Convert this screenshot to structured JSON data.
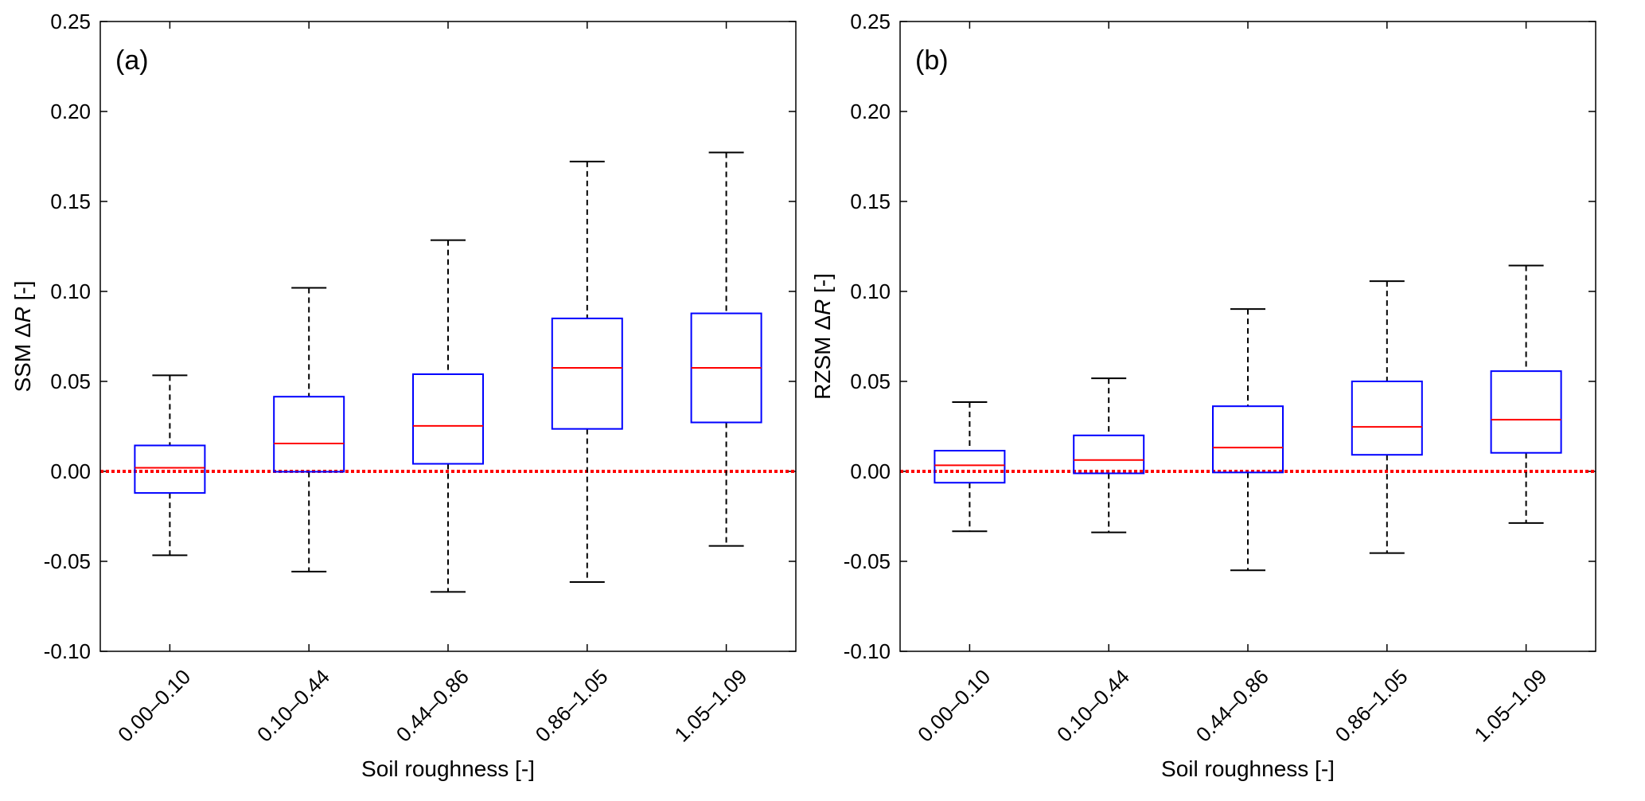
{
  "chart_data": [
    {
      "type": "box",
      "panel_label": "(a)",
      "title": "",
      "xlabel": "Soil roughness [-]",
      "ylabel_prefix": "SSM ",
      "ylabel_delta": "Δ",
      "ylabel_var": "R",
      "ylabel_suffix": " [-]",
      "ylim": [
        -0.1,
        0.25
      ],
      "yticks": [
        "-0.10",
        "-0.05",
        "0.00",
        "0.05",
        "0.10",
        "0.15",
        "0.20",
        "0.25"
      ],
      "categories": [
        "0.00–0.10",
        "0.10–0.44",
        "0.44–0.86",
        "0.86–1.05",
        "1.05–1.09"
      ],
      "boxes": [
        {
          "whisker_low": -0.0466,
          "q1": -0.012,
          "median": 0.002,
          "q3": 0.0144,
          "whisker_high": 0.0534
        },
        {
          "whisker_low": -0.0557,
          "q1": -0.0002,
          "median": 0.0155,
          "q3": 0.0415,
          "whisker_high": 0.102
        },
        {
          "whisker_low": -0.067,
          "q1": 0.0042,
          "median": 0.0253,
          "q3": 0.054,
          "whisker_high": 0.1285
        },
        {
          "whisker_low": -0.0615,
          "q1": 0.0236,
          "median": 0.0575,
          "q3": 0.085,
          "whisker_high": 0.1722
        },
        {
          "whisker_low": -0.0414,
          "q1": 0.0272,
          "median": 0.0575,
          "q3": 0.0878,
          "whisker_high": 0.1772
        }
      ],
      "reference_line": 0.0
    },
    {
      "type": "box",
      "panel_label": "(b)",
      "title": "",
      "xlabel": "Soil roughness [-]",
      "ylabel_prefix": "RZSM ",
      "ylabel_delta": "Δ",
      "ylabel_var": "R",
      "ylabel_suffix": " [-]",
      "ylim": [
        -0.1,
        0.25
      ],
      "yticks": [
        "-0.10",
        "-0.05",
        "0.00",
        "0.05",
        "0.10",
        "0.15",
        "0.20",
        "0.25"
      ],
      "categories": [
        "0.00–0.10",
        "0.10–0.44",
        "0.44–0.86",
        "0.86–1.05",
        "1.05–1.09"
      ],
      "boxes": [
        {
          "whisker_low": -0.0333,
          "q1": -0.0063,
          "median": 0.0034,
          "q3": 0.0115,
          "whisker_high": 0.0385
        },
        {
          "whisker_low": -0.0339,
          "q1": -0.0011,
          "median": 0.0063,
          "q3": 0.02,
          "whisker_high": 0.0517
        },
        {
          "whisker_low": -0.055,
          "q1": -0.0006,
          "median": 0.0132,
          "q3": 0.0362,
          "whisker_high": 0.0902
        },
        {
          "whisker_low": -0.0454,
          "q1": 0.0092,
          "median": 0.0247,
          "q3": 0.05,
          "whisker_high": 0.1057
        },
        {
          "whisker_low": -0.0287,
          "q1": 0.0103,
          "median": 0.0287,
          "q3": 0.0557,
          "whisker_high": 0.1144
        }
      ],
      "reference_line": 0.0
    }
  ],
  "colors": {
    "box": "#0000ff",
    "median": "#ff0000",
    "reference": "#ff0000",
    "whisker": "#000000"
  }
}
